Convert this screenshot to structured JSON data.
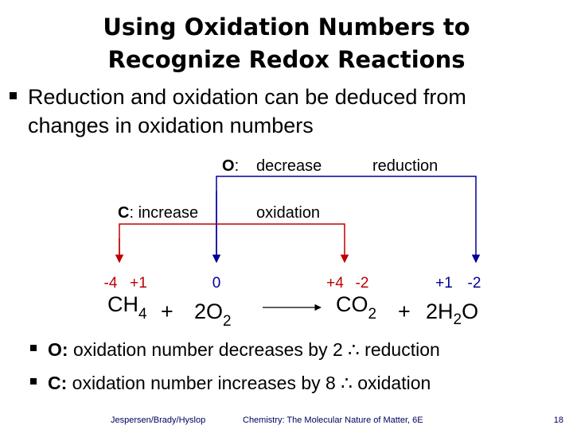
{
  "title": [
    "Using Oxidation Numbers to",
    "Recognize Redox Reactions"
  ],
  "bullet": [
    "Reduction and oxidation can be deduced from",
    "changes in oxidation numbers"
  ],
  "diagram": {
    "oxygen": {
      "element": "O",
      "colon": ":",
      "change": "decrease",
      "result": "reduction"
    },
    "carbon": {
      "element": "C",
      "colon": ": increase",
      "result": "oxidation"
    },
    "oxidation_numbers": [
      "-4",
      "+1",
      "0",
      "+4",
      "-2",
      "+1",
      "-2"
    ]
  },
  "equation": {
    "ch4": [
      "CH",
      "4"
    ],
    "plus": "+",
    "o2": [
      "2O",
      "2"
    ],
    "co2": [
      "CO",
      "2"
    ],
    "h2o": [
      "2H",
      "2",
      "O"
    ]
  },
  "sub_bullets": [
    {
      "label": "O:",
      "text": " oxidation number decreases by 2 ∴ reduction"
    },
    {
      "label": "C:",
      "text": " oxidation number increases by 8 ∴ oxidation"
    }
  ],
  "footer": {
    "authors": "Jespersen/Brady/Hyslop",
    "book": "Chemistry: The Molecular Nature of Matter, 6E",
    "page": "18"
  }
}
